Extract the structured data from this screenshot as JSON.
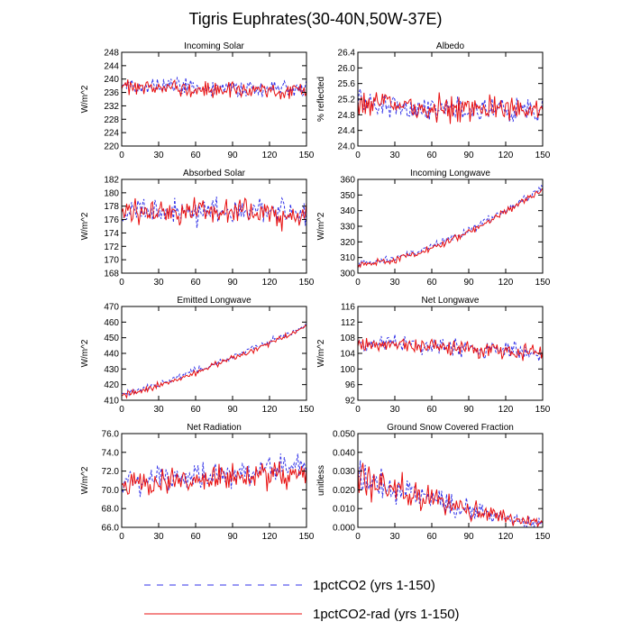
{
  "title": "Tigris Euphrates(30-40N,50W-37E)",
  "colors": {
    "series1": "#3030e8",
    "series2": "#e81010",
    "axis": "#000000"
  },
  "legend": [
    {
      "name": "1pctCO2 (yrs 1-150)",
      "color": "#3030e8",
      "dash": "dashed"
    },
    {
      "name": "1pctCO2-rad (yrs 1-150)",
      "color": "#e81010",
      "dash": "solid"
    }
  ],
  "chart_data": [
    {
      "type": "line",
      "title": "Incoming Solar",
      "ylabel": "W/m^2",
      "xlim": [
        0,
        150
      ],
      "ylim": [
        220,
        248
      ],
      "xticks": [
        "0",
        "30",
        "60",
        "90",
        "120",
        "150"
      ],
      "yticks": [
        "220",
        "224",
        "228",
        "232",
        "236",
        "240",
        "244",
        "248"
      ],
      "series": [
        {
          "name": "1pctCO2 (yrs 1-150)",
          "start": 238,
          "end": 237,
          "noise": 2.5,
          "seed": 11
        },
        {
          "name": "1pctCO2-rad (yrs 1-150)",
          "start": 238,
          "end": 236,
          "noise": 2.5,
          "seed": 12
        }
      ]
    },
    {
      "type": "line",
      "title": "Albedo",
      "ylabel": "% reflected",
      "xlim": [
        0,
        150
      ],
      "ylim": [
        24.0,
        26.4
      ],
      "xticks": [
        "0",
        "30",
        "60",
        "90",
        "120",
        "150"
      ],
      "yticks": [
        "24.0",
        "24.4",
        "24.8",
        "25.2",
        "25.6",
        "26.0",
        "26.4"
      ],
      "series": [
        {
          "name": "1pctCO2 (yrs 1-150)",
          "start": 25.05,
          "end": 24.9,
          "noise": 0.32,
          "seed": 21
        },
        {
          "name": "1pctCO2-rad (yrs 1-150)",
          "start": 25.1,
          "end": 24.9,
          "noise": 0.32,
          "seed": 22
        }
      ]
    },
    {
      "type": "line",
      "title": "Absorbed Solar",
      "ylabel": "W/m^2",
      "xlim": [
        0,
        150
      ],
      "ylim": [
        168,
        182
      ],
      "xticks": [
        "0",
        "30",
        "60",
        "90",
        "120",
        "150"
      ],
      "yticks": [
        "168",
        "170",
        "172",
        "174",
        "176",
        "178",
        "180",
        "182"
      ],
      "series": [
        {
          "name": "1pctCO2 (yrs 1-150)",
          "start": 177.5,
          "end": 177,
          "noise": 1.8,
          "seed": 31
        },
        {
          "name": "1pctCO2-rad (yrs 1-150)",
          "start": 177.5,
          "end": 176.5,
          "noise": 1.8,
          "seed": 32
        }
      ]
    },
    {
      "type": "line",
      "title": "Incoming Longwave",
      "ylabel": "W/m^2",
      "xlim": [
        0,
        150
      ],
      "ylim": [
        300,
        360
      ],
      "xticks": [
        "0",
        "30",
        "60",
        "90",
        "120",
        "150"
      ],
      "yticks": [
        "300",
        "310",
        "320",
        "330",
        "340",
        "350",
        "360"
      ],
      "series": [
        {
          "name": "1pctCO2 (yrs 1-150)",
          "start": 306,
          "end": 355,
          "noise": 2.2,
          "curve": 1.6,
          "seed": 41
        },
        {
          "name": "1pctCO2-rad (yrs 1-150)",
          "start": 305,
          "end": 354,
          "noise": 2.2,
          "curve": 1.6,
          "seed": 42
        }
      ]
    },
    {
      "type": "line",
      "title": "Emitted Longwave",
      "ylabel": "W/m^2",
      "xlim": [
        0,
        150
      ],
      "ylim": [
        410,
        470
      ],
      "xticks": [
        "0",
        "30",
        "60",
        "90",
        "120",
        "150"
      ],
      "yticks": [
        "410",
        "420",
        "430",
        "440",
        "450",
        "460",
        "470"
      ],
      "series": [
        {
          "name": "1pctCO2 (yrs 1-150)",
          "start": 414,
          "end": 458,
          "noise": 2.0,
          "curve": 1.2,
          "seed": 51
        },
        {
          "name": "1pctCO2-rad (yrs 1-150)",
          "start": 413,
          "end": 457,
          "noise": 2.0,
          "curve": 1.2,
          "seed": 52
        }
      ]
    },
    {
      "type": "line",
      "title": "Net Longwave",
      "ylabel": "W/m^2",
      "xlim": [
        0,
        150
      ],
      "ylim": [
        92,
        116
      ],
      "xticks": [
        "0",
        "30",
        "60",
        "90",
        "120",
        "150"
      ],
      "yticks": [
        "92",
        "96",
        "100",
        "104",
        "108",
        "112",
        "116"
      ],
      "series": [
        {
          "name": "1pctCO2 (yrs 1-150)",
          "start": 107,
          "end": 104,
          "noise": 2.2,
          "seed": 61
        },
        {
          "name": "1pctCO2-rad (yrs 1-150)",
          "start": 107,
          "end": 104,
          "noise": 2.2,
          "seed": 62
        }
      ]
    },
    {
      "type": "line",
      "title": "Net Radiation",
      "ylabel": "W/m^2",
      "xlim": [
        0,
        150
      ],
      "ylim": [
        66.0,
        76.0
      ],
      "xticks": [
        "0",
        "30",
        "60",
        "90",
        "120",
        "150"
      ],
      "yticks": [
        "66.0",
        "68.0",
        "70.0",
        "72.0",
        "74.0",
        "76.0"
      ],
      "series": [
        {
          "name": "1pctCO2 (yrs 1-150)",
          "start": 70.8,
          "end": 72.5,
          "noise": 1.3,
          "seed": 71
        },
        {
          "name": "1pctCO2-rad (yrs 1-150)",
          "start": 70.5,
          "end": 71.8,
          "noise": 1.3,
          "seed": 72
        }
      ]
    },
    {
      "type": "line",
      "title": "Ground Snow Covered Fraction",
      "ylabel": "unitless",
      "xlim": [
        0,
        150
      ],
      "ylim": [
        0.0,
        0.05
      ],
      "xticks": [
        "0",
        "30",
        "60",
        "90",
        "120",
        "150"
      ],
      "yticks": [
        "0.000",
        "0.010",
        "0.020",
        "0.030",
        "0.040",
        "0.050"
      ],
      "series": [
        {
          "name": "1pctCO2 (yrs 1-150)",
          "start": 0.026,
          "end": 0.002,
          "noise": 0.007,
          "decay": true,
          "seed": 81
        },
        {
          "name": "1pctCO2-rad (yrs 1-150)",
          "start": 0.027,
          "end": 0.002,
          "noise": 0.007,
          "decay": true,
          "seed": 82
        }
      ]
    }
  ]
}
